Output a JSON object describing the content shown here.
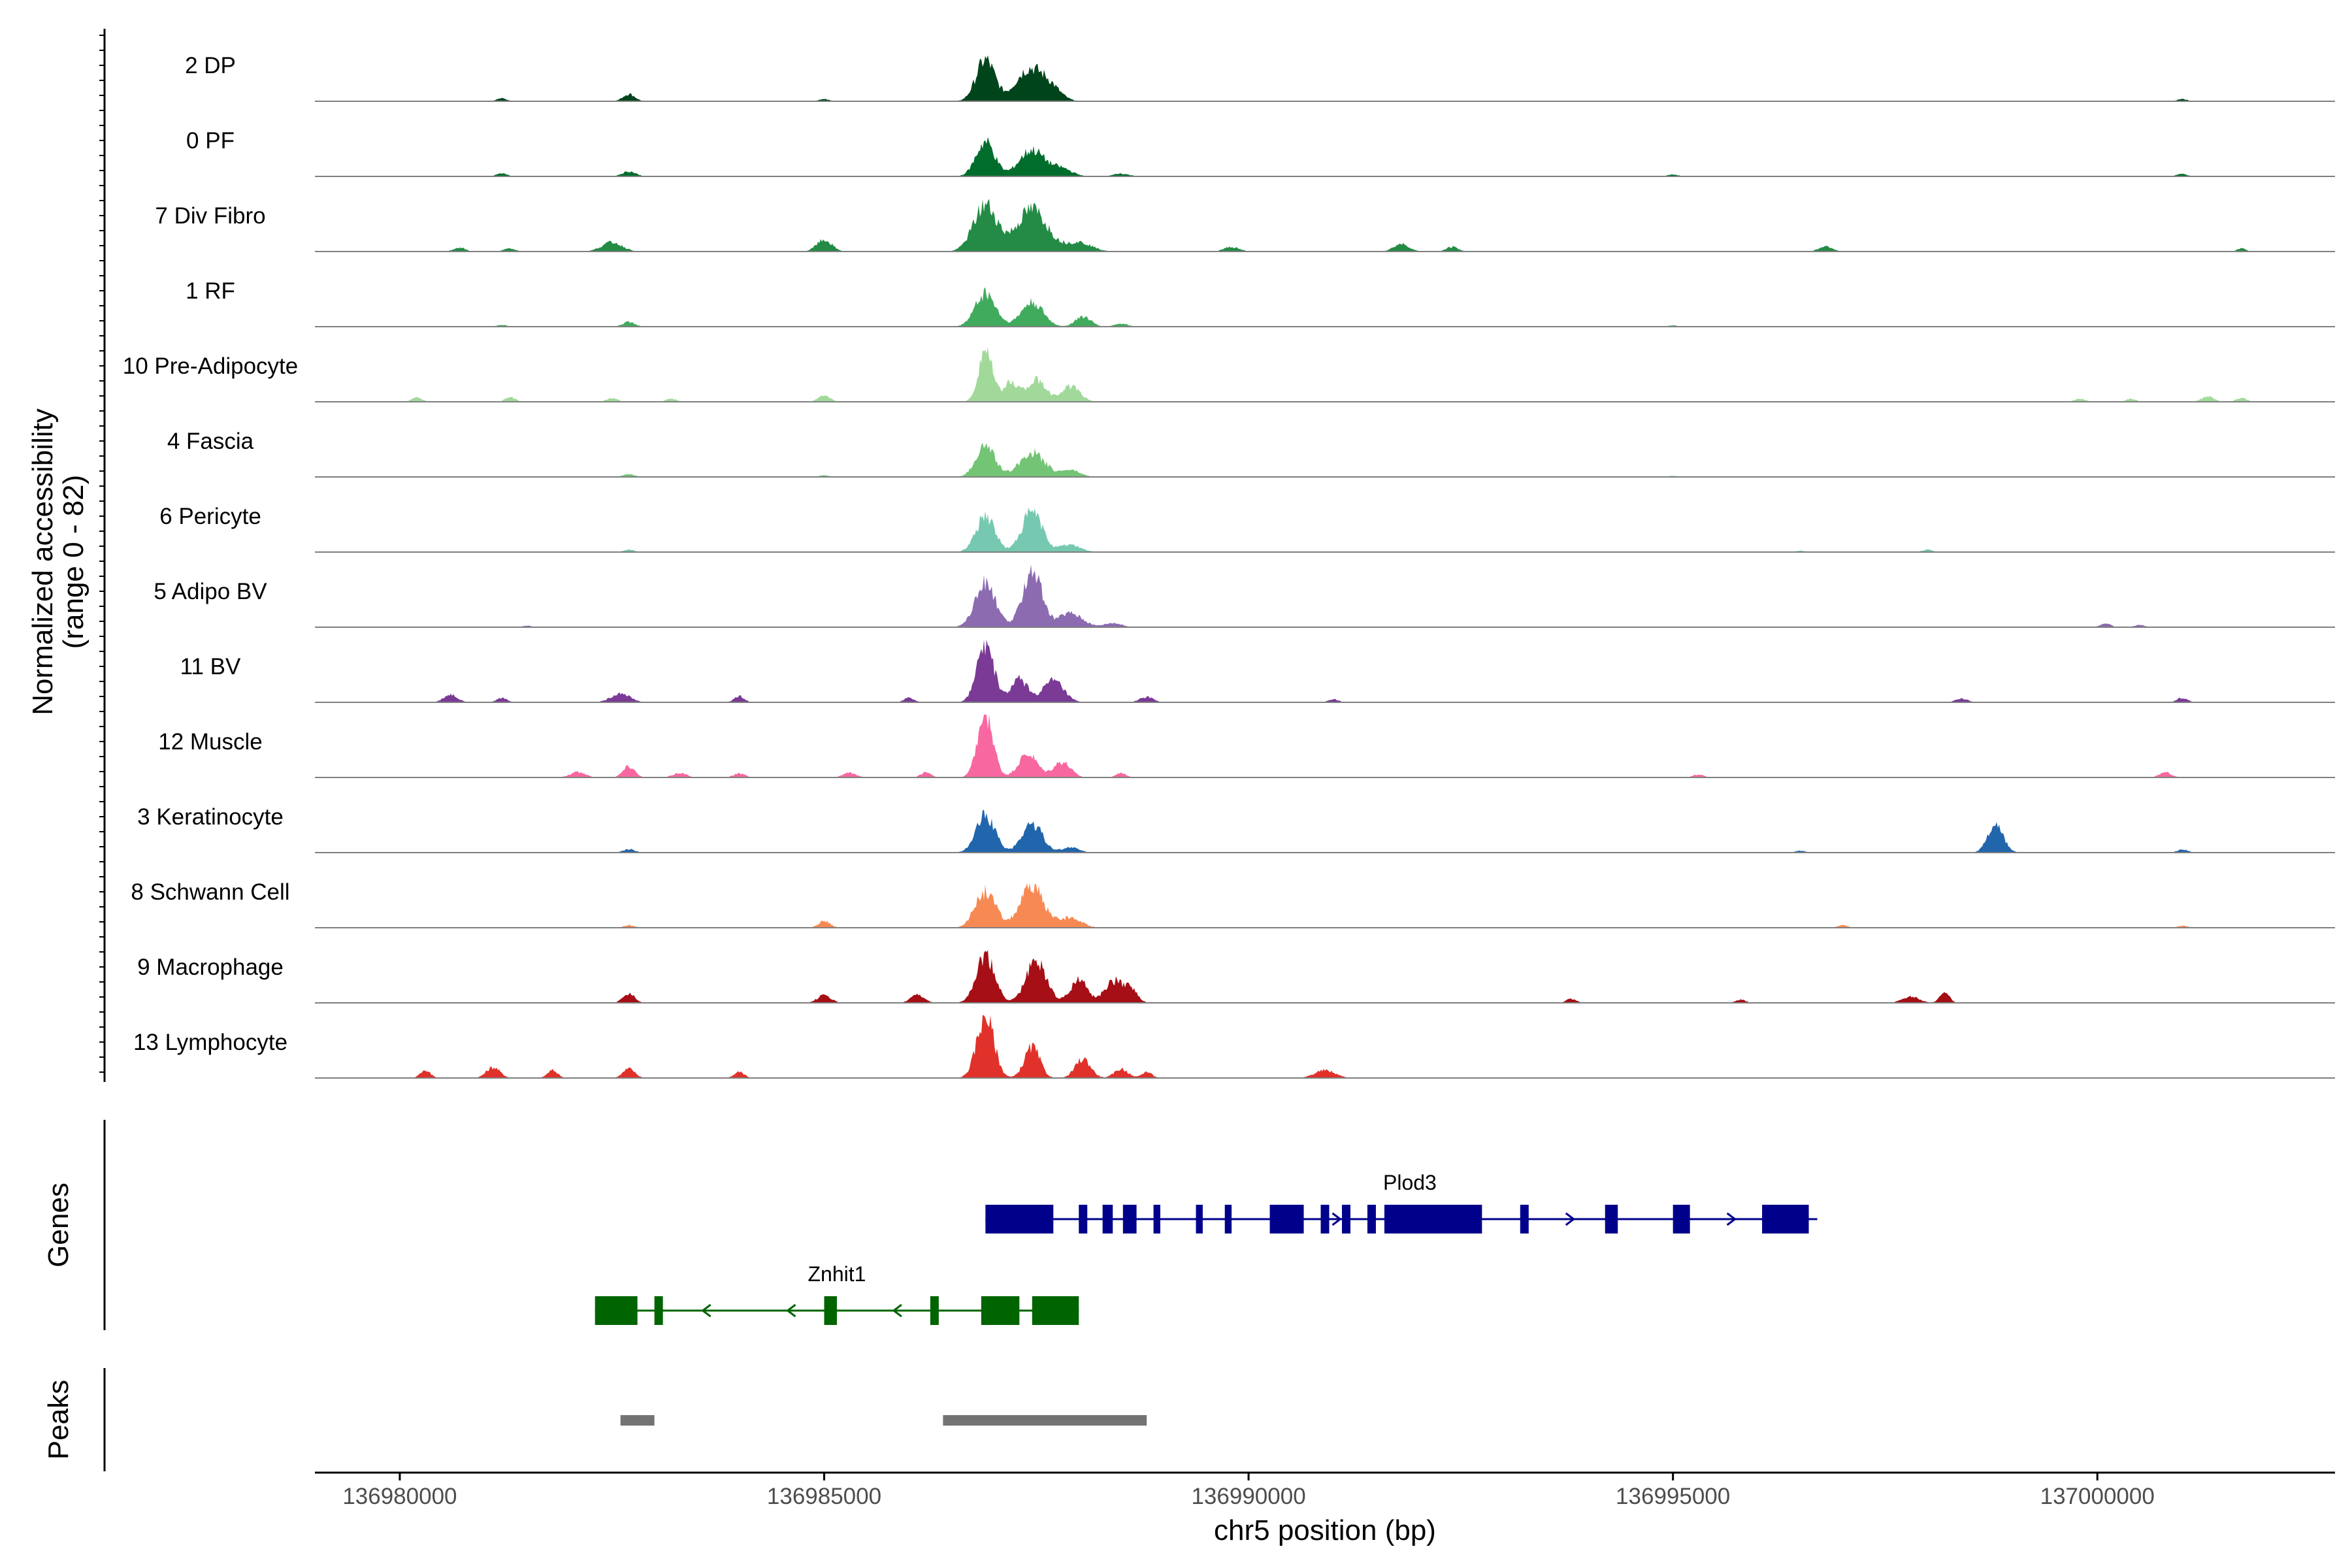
{
  "chart_data": {
    "type": "area",
    "title": "",
    "ylabel": "Normalized accessibility",
    "ylabel_range": "(range 0 - 82)",
    "ylim": [
      0,
      82
    ],
    "xlabel": "chr5 position (bp)",
    "xlim": [
      136979000,
      137002800
    ],
    "x_ticks": [
      136980000,
      136985000,
      136990000,
      136995000,
      137000000
    ],
    "x_tick_labels": [
      "136980000",
      "136985000",
      "136990000",
      "136995000",
      "137000000"
    ],
    "panel_titles": {
      "genes": "Genes",
      "peaks": "Peaks"
    },
    "tracks": [
      {
        "name": "2 DP",
        "color": "#00441b",
        "scale": 0.95,
        "peaks": [
          [
            136986900,
            57,
            110
          ],
          [
            136987400,
            42,
            150
          ],
          [
            136987650,
            20,
            130
          ],
          [
            136982700,
            10,
            70
          ],
          [
            136981200,
            4,
            60
          ],
          [
            136985000,
            3,
            60
          ],
          [
            137001000,
            3,
            60
          ]
        ]
      },
      {
        "name": "0 PF",
        "color": "#006d2c",
        "scale": 0.82,
        "peaks": [
          [
            136986900,
            55,
            110
          ],
          [
            136987450,
            42,
            150
          ],
          [
            136987800,
            12,
            120
          ],
          [
            136982700,
            8,
            80
          ],
          [
            136981200,
            5,
            60
          ],
          [
            136988500,
            4,
            100
          ],
          [
            136995000,
            3,
            60
          ],
          [
            137001000,
            4,
            60
          ]
        ]
      },
      {
        "name": "7 Div Fibro",
        "color": "#238b45",
        "scale": 1.0,
        "peaks": [
          [
            136986900,
            60,
            140
          ],
          [
            136987450,
            55,
            180
          ],
          [
            136988000,
            12,
            150
          ],
          [
            136982500,
            12,
            120
          ],
          [
            136985000,
            15,
            90
          ],
          [
            136989800,
            6,
            90
          ],
          [
            136991800,
            10,
            90
          ],
          [
            136992400,
            6,
            70
          ],
          [
            136996800,
            7,
            80
          ],
          [
            136980700,
            5,
            70
          ],
          [
            136981300,
            4,
            70
          ],
          [
            137001700,
            4,
            50
          ]
        ]
      },
      {
        "name": "1 RF",
        "color": "#41ab5d",
        "scale": 0.78,
        "peaks": [
          [
            136986900,
            56,
            120
          ],
          [
            136987450,
            40,
            130
          ],
          [
            136988050,
            17,
            90
          ],
          [
            136982700,
            8,
            70
          ],
          [
            136988500,
            5,
            80
          ],
          [
            136981200,
            3,
            60
          ],
          [
            136995000,
            2,
            60
          ]
        ]
      },
      {
        "name": "10 Pre-Adipocyte",
        "color": "#a1d99b",
        "scale": 1.0,
        "peaks": [
          [
            136986900,
            70,
            80
          ],
          [
            136987200,
            25,
            90
          ],
          [
            136987500,
            28,
            110
          ],
          [
            136987900,
            20,
            110
          ],
          [
            136985000,
            8,
            70
          ],
          [
            136980200,
            6,
            60
          ],
          [
            136981300,
            6,
            60
          ],
          [
            136982500,
            5,
            60
          ],
          [
            136983200,
            4,
            60
          ],
          [
            137001300,
            7,
            70
          ],
          [
            137001700,
            5,
            60
          ],
          [
            136999800,
            4,
            60
          ],
          [
            137000400,
            4,
            60
          ]
        ]
      },
      {
        "name": "4 Fascia",
        "color": "#74c476",
        "scale": 0.7,
        "peaks": [
          [
            136986900,
            58,
            110
          ],
          [
            136987450,
            45,
            150
          ],
          [
            136987900,
            13,
            110
          ],
          [
            136982700,
            5,
            70
          ],
          [
            136985000,
            3,
            60
          ],
          [
            136995000,
            2,
            60
          ]
        ]
      },
      {
        "name": "6 Pericyte",
        "color": "#76c8b1",
        "scale": 0.8,
        "peaks": [
          [
            136986900,
            60,
            110
          ],
          [
            136987450,
            65,
            120
          ],
          [
            136987900,
            12,
            120
          ],
          [
            136982700,
            4,
            60
          ],
          [
            136998000,
            4,
            60
          ],
          [
            136996500,
            2,
            60
          ]
        ]
      },
      {
        "name": "5 Adipo BV",
        "color": "#8c6bb1",
        "scale": 0.95,
        "peaks": [
          [
            136986900,
            60,
            120
          ],
          [
            136987450,
            80,
            110
          ],
          [
            136987900,
            20,
            140
          ],
          [
            136988400,
            6,
            100
          ],
          [
            137000100,
            5,
            60
          ],
          [
            137000500,
            3,
            60
          ],
          [
            136981500,
            2,
            60
          ]
        ]
      },
      {
        "name": "11 BV",
        "color": "#7a3a96",
        "scale": 1.0,
        "peaks": [
          [
            136986900,
            75,
            100
          ],
          [
            136987300,
            30,
            100
          ],
          [
            136987700,
            28,
            120
          ],
          [
            136980600,
            10,
            80
          ],
          [
            136982600,
            12,
            110
          ],
          [
            136984000,
            8,
            60
          ],
          [
            136981200,
            6,
            60
          ],
          [
            136986000,
            6,
            60
          ],
          [
            136988800,
            7,
            80
          ],
          [
            136998400,
            5,
            70
          ],
          [
            137001000,
            6,
            60
          ],
          [
            136991000,
            4,
            60
          ]
        ]
      },
      {
        "name": "12 Muscle",
        "color": "#f768a1",
        "scale": 1.0,
        "peaks": [
          [
            136986900,
            82,
            90
          ],
          [
            136987400,
            30,
            110
          ],
          [
            136987800,
            20,
            100
          ],
          [
            136982700,
            15,
            70
          ],
          [
            136982100,
            7,
            90
          ],
          [
            136983300,
            6,
            80
          ],
          [
            136984000,
            5,
            70
          ],
          [
            136985300,
            6,
            80
          ],
          [
            136986200,
            7,
            60
          ],
          [
            136988500,
            6,
            60
          ],
          [
            137000800,
            7,
            70
          ],
          [
            136995300,
            4,
            60
          ]
        ]
      },
      {
        "name": "3 Keratinocyte",
        "color": "#2166ac",
        "scale": 0.85,
        "peaks": [
          [
            136986900,
            58,
            110
          ],
          [
            136987450,
            45,
            120
          ],
          [
            136998800,
            42,
            90
          ],
          [
            136987900,
            8,
            100
          ],
          [
            136982700,
            5,
            70
          ],
          [
            137001000,
            5,
            60
          ],
          [
            136996500,
            3,
            60
          ]
        ]
      },
      {
        "name": "8 Schwann Cell",
        "color": "#f78a54",
        "scale": 0.85,
        "peaks": [
          [
            136986900,
            55,
            120
          ],
          [
            136987450,
            62,
            140
          ],
          [
            136987900,
            15,
            130
          ],
          [
            136985000,
            10,
            70
          ],
          [
            136982700,
            4,
            60
          ],
          [
            136997000,
            4,
            60
          ],
          [
            137001000,
            3,
            60
          ]
        ]
      },
      {
        "name": "9 Macrophage",
        "color": "#a50f15",
        "scale": 1.0,
        "peaks": [
          [
            136986900,
            60,
            110
          ],
          [
            136987500,
            55,
            120
          ],
          [
            136988000,
            30,
            100
          ],
          [
            136988400,
            28,
            100
          ],
          [
            136988600,
            20,
            80
          ],
          [
            136982700,
            12,
            70
          ],
          [
            136985000,
            10,
            80
          ],
          [
            136986100,
            10,
            80
          ],
          [
            136998200,
            12,
            60
          ],
          [
            136997800,
            8,
            100
          ],
          [
            136993800,
            5,
            60
          ],
          [
            136995800,
            4,
            60
          ]
        ]
      },
      {
        "name": "13 Lymphocyte",
        "color": "#e0312a",
        "scale": 1.0,
        "peaks": [
          [
            136986900,
            82,
            100
          ],
          [
            136987450,
            40,
            90
          ],
          [
            136988050,
            25,
            90
          ],
          [
            136988500,
            12,
            80
          ],
          [
            136980300,
            10,
            60
          ],
          [
            136981100,
            14,
            80
          ],
          [
            136981800,
            10,
            60
          ],
          [
            136982700,
            12,
            70
          ],
          [
            136984000,
            8,
            60
          ],
          [
            136990900,
            10,
            120
          ],
          [
            136988800,
            8,
            60
          ]
        ]
      }
    ],
    "genes": [
      {
        "name": "Plod3",
        "color": "#00008b",
        "strand": "+",
        "start": 136986900,
        "end": 136996700,
        "exons": [
          [
            136986900,
            136987700
          ],
          [
            136988000,
            136988100
          ],
          [
            136988280,
            136988400
          ],
          [
            136988520,
            136988680
          ],
          [
            136988880,
            136988960
          ],
          [
            136989380,
            136989460
          ],
          [
            136989720,
            136989800
          ],
          [
            136990250,
            136990650
          ],
          [
            136990850,
            136990950
          ],
          [
            136991100,
            136991200
          ],
          [
            136991400,
            136991500
          ],
          [
            136991600,
            136992750
          ],
          [
            136993200,
            136993300
          ],
          [
            136994200,
            136994350
          ],
          [
            136995000,
            136995200
          ],
          [
            136996050,
            136996600
          ]
        ],
        "arrows": [
          136991050,
          136993800,
          136995700
        ]
      },
      {
        "name": "Znhit1",
        "color": "#006400",
        "strand": "-",
        "start": 136982300,
        "end": 136988000,
        "exons": [
          [
            136982300,
            136982800
          ],
          [
            136983000,
            136983100
          ],
          [
            136985000,
            136985150
          ],
          [
            136986250,
            136986350
          ],
          [
            136986850,
            136987300
          ],
          [
            136987450,
            136988000
          ]
        ],
        "arrows": [
          136983600,
          136984600,
          136985850
        ]
      }
    ],
    "peaks": [
      [
        136982600,
        136983000
      ],
      [
        136986400,
        136988800
      ]
    ]
  }
}
